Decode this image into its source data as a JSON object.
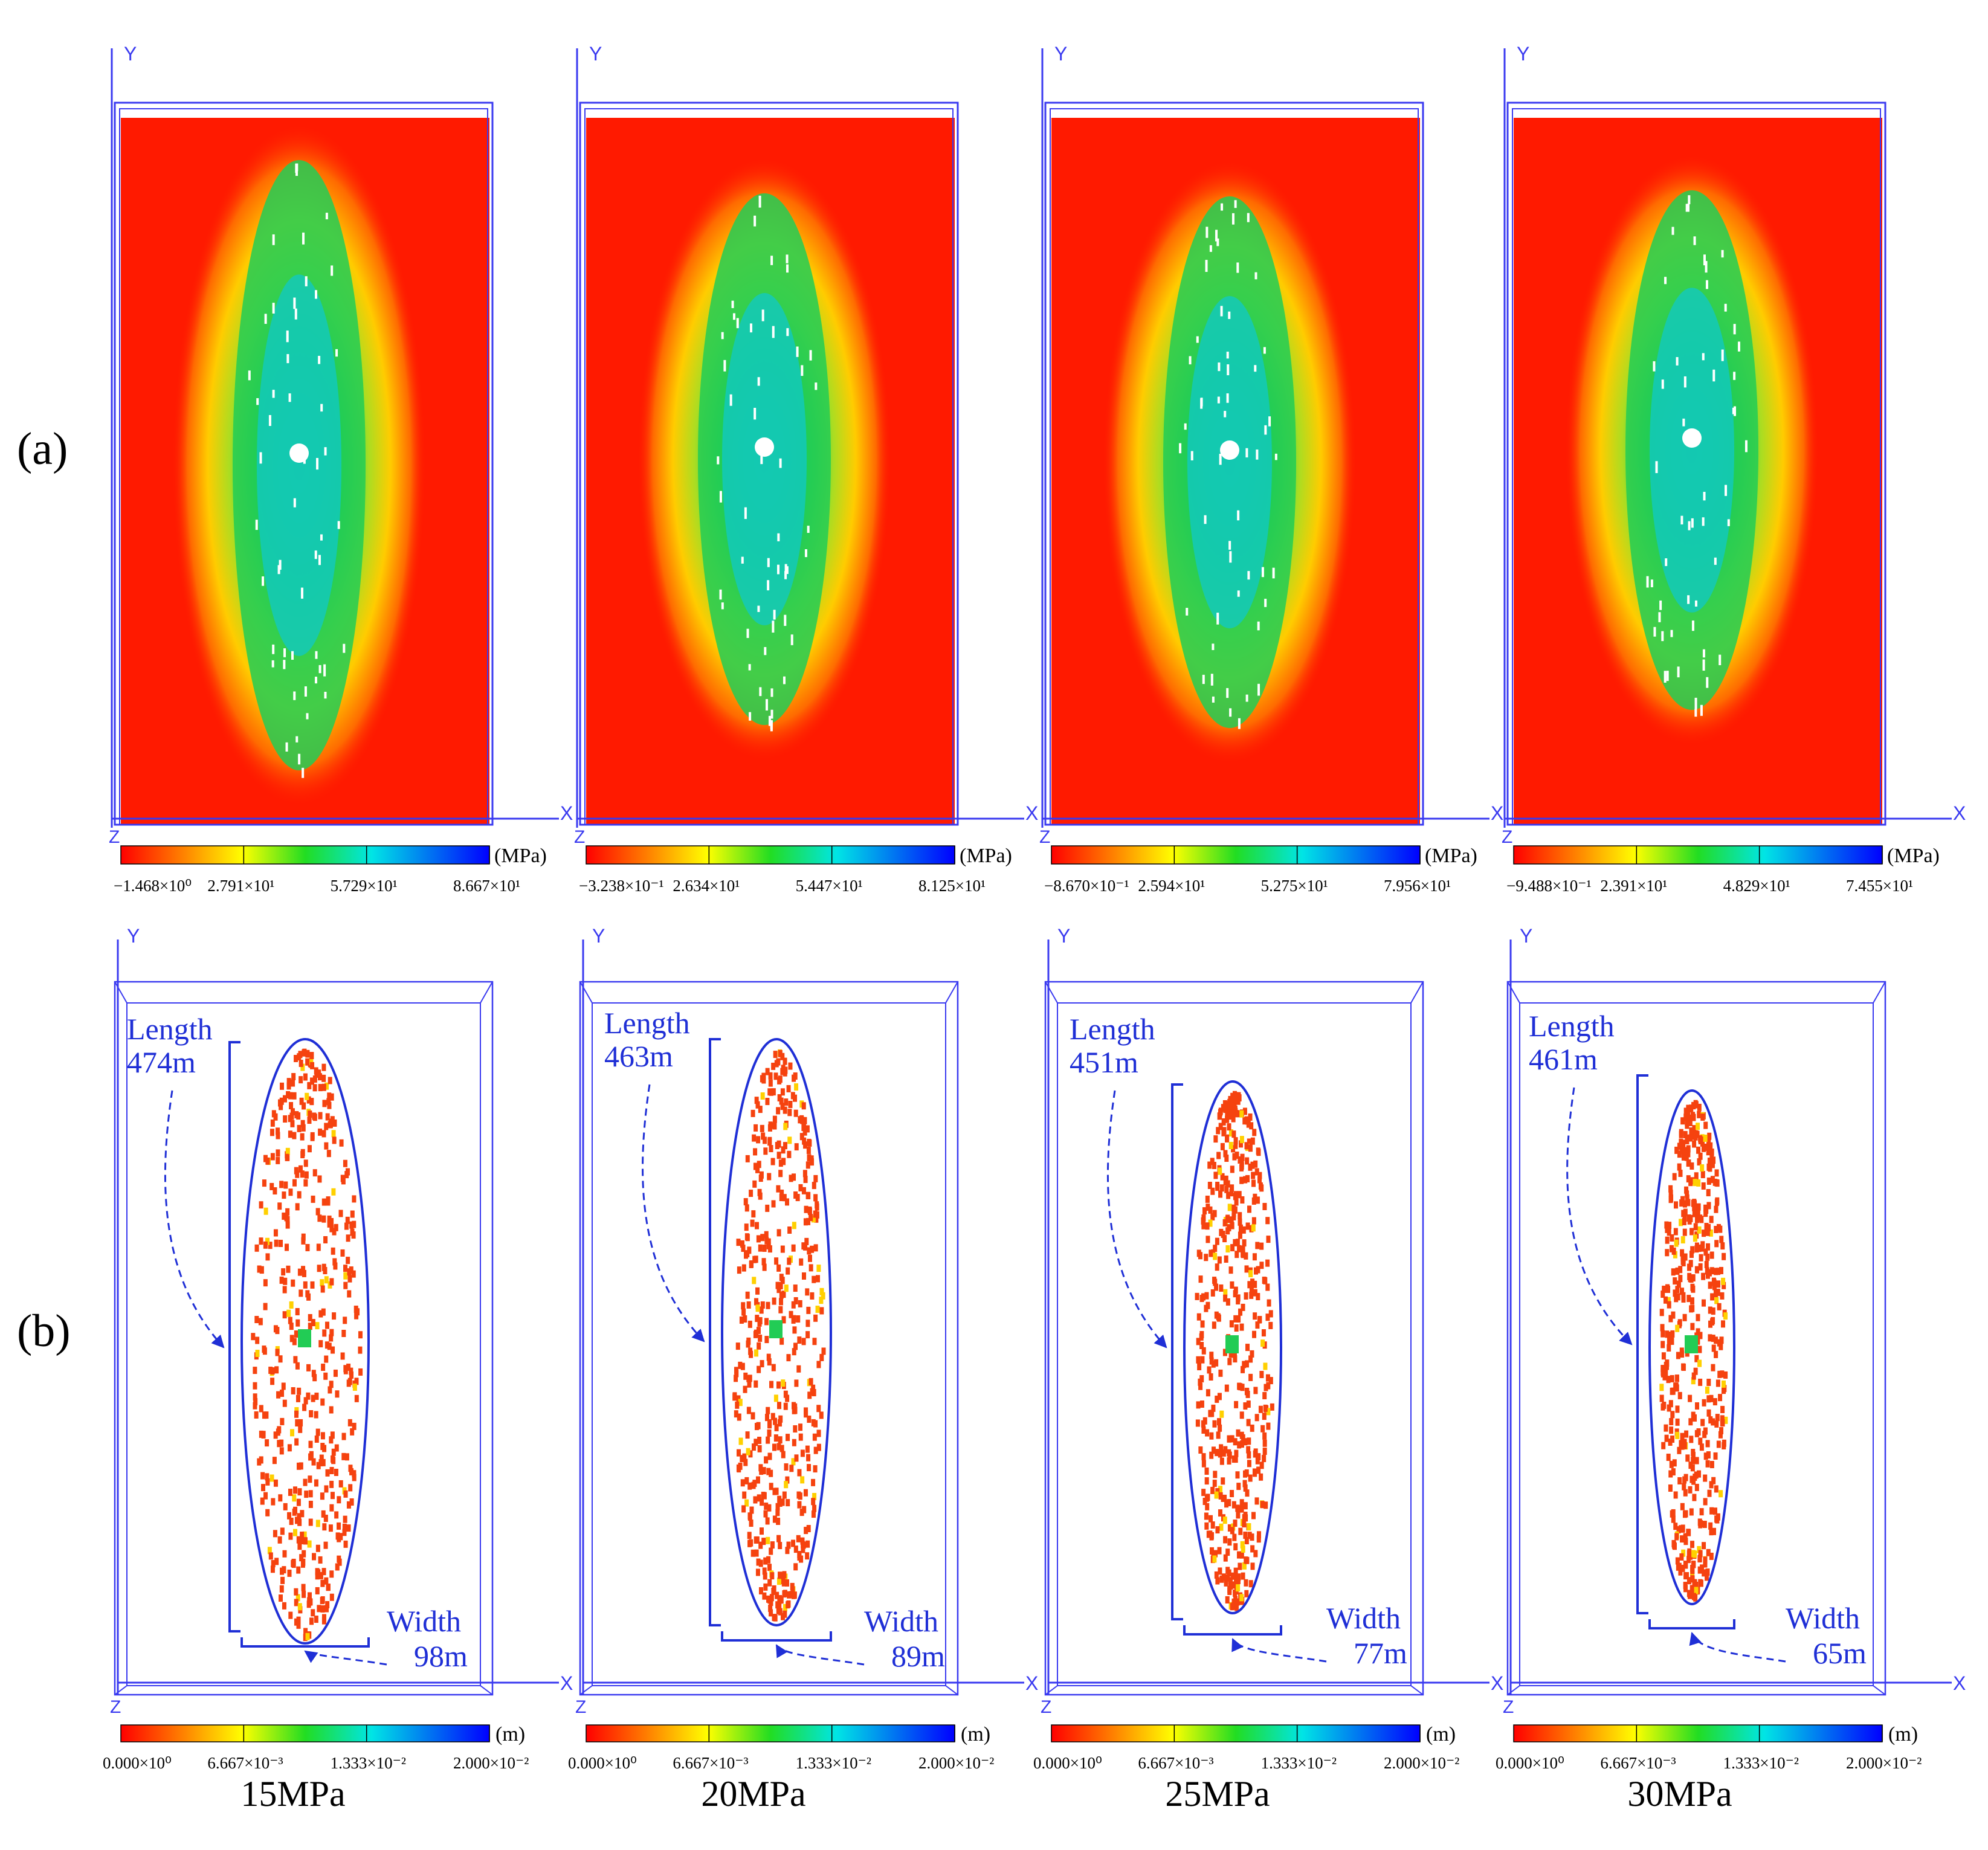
{
  "row_labels": {
    "a": "(a)",
    "b": "(b)"
  },
  "axis_labels": {
    "x": "X",
    "y": "Y",
    "z": "Z"
  },
  "pressure_row": {
    "unit": "(MPa)",
    "panels": [
      {
        "ticks": [
          "−1.468×10⁰",
          "2.791×10¹",
          "5.729×10¹",
          "8.667×10¹"
        ]
      },
      {
        "ticks": [
          "−3.238×10⁻¹",
          "2.634×10¹",
          "5.447×10¹",
          "8.125×10¹"
        ]
      },
      {
        "ticks": [
          "−8.670×10⁻¹",
          "2.594×10¹",
          "5.275×10¹",
          "7.956×10¹"
        ]
      },
      {
        "ticks": [
          "−9.488×10⁻¹",
          "2.391×10¹",
          "4.829×10¹",
          "7.455×10¹"
        ]
      }
    ]
  },
  "width_row": {
    "unit": "(m)",
    "length_label": "Length",
    "width_label": "Width",
    "ticks": [
      "0.000×10⁰",
      "6.667×10⁻³",
      "1.333×10⁻²",
      "2.000×10⁻²"
    ],
    "panels": [
      {
        "length": "474m",
        "width": "98m"
      },
      {
        "length": "463m",
        "width": "89m"
      },
      {
        "length": "451m",
        "width": "77m"
      },
      {
        "length": "461m",
        "width": "65m"
      }
    ]
  },
  "captions": [
    "15MPa",
    "20MPa",
    "25MPa",
    "30MPa"
  ],
  "colors": {
    "frame": "#3a3af0",
    "annotation": "#1f2fd6",
    "background_field": "#ff1a00",
    "fracture": "#f5420f",
    "colormap": [
      "#ff0000",
      "#ff8a00",
      "#ffff00",
      "#22dd22",
      "#00e5e5",
      "#0000ff"
    ]
  }
}
